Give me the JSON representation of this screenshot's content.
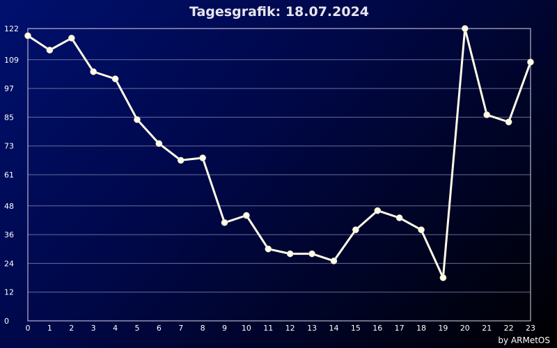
{
  "chart_data": {
    "type": "line",
    "title": "Tagesgrafik: 18.07.2024",
    "xlabel": "",
    "ylabel": "",
    "x": [
      0,
      1,
      2,
      3,
      4,
      5,
      6,
      7,
      8,
      9,
      10,
      11,
      12,
      13,
      14,
      15,
      16,
      17,
      18,
      19,
      20,
      21,
      22,
      23
    ],
    "x_tick_labels": [
      "0",
      "1",
      "2",
      "3",
      "4",
      "5",
      "6",
      "7",
      "8",
      "9",
      "10",
      "11",
      "12",
      "13",
      "14",
      "15",
      "16",
      "17",
      "18",
      "19",
      "20",
      "21",
      "22",
      "23"
    ],
    "series": [
      {
        "values": [
          119,
          113,
          118,
          104,
          101,
          84,
          74,
          67,
          68,
          41,
          44,
          30,
          28,
          28,
          25,
          38,
          46,
          43,
          38,
          18,
          122,
          86,
          83,
          108
        ]
      }
    ],
    "ylim": [
      0,
      122
    ],
    "y_ticks": [
      0,
      12,
      24,
      36,
      48,
      61,
      73,
      85,
      97,
      109,
      122
    ],
    "y_tick_labels": [
      "0",
      "12",
      "24",
      "36",
      "48",
      "61",
      "73",
      "85",
      "97",
      "109",
      "122"
    ],
    "grid": true,
    "legend": "none",
    "colors": {
      "line": "#fffde8",
      "grid": "#8a8fb8"
    }
  },
  "credit": "by ARMetOS"
}
